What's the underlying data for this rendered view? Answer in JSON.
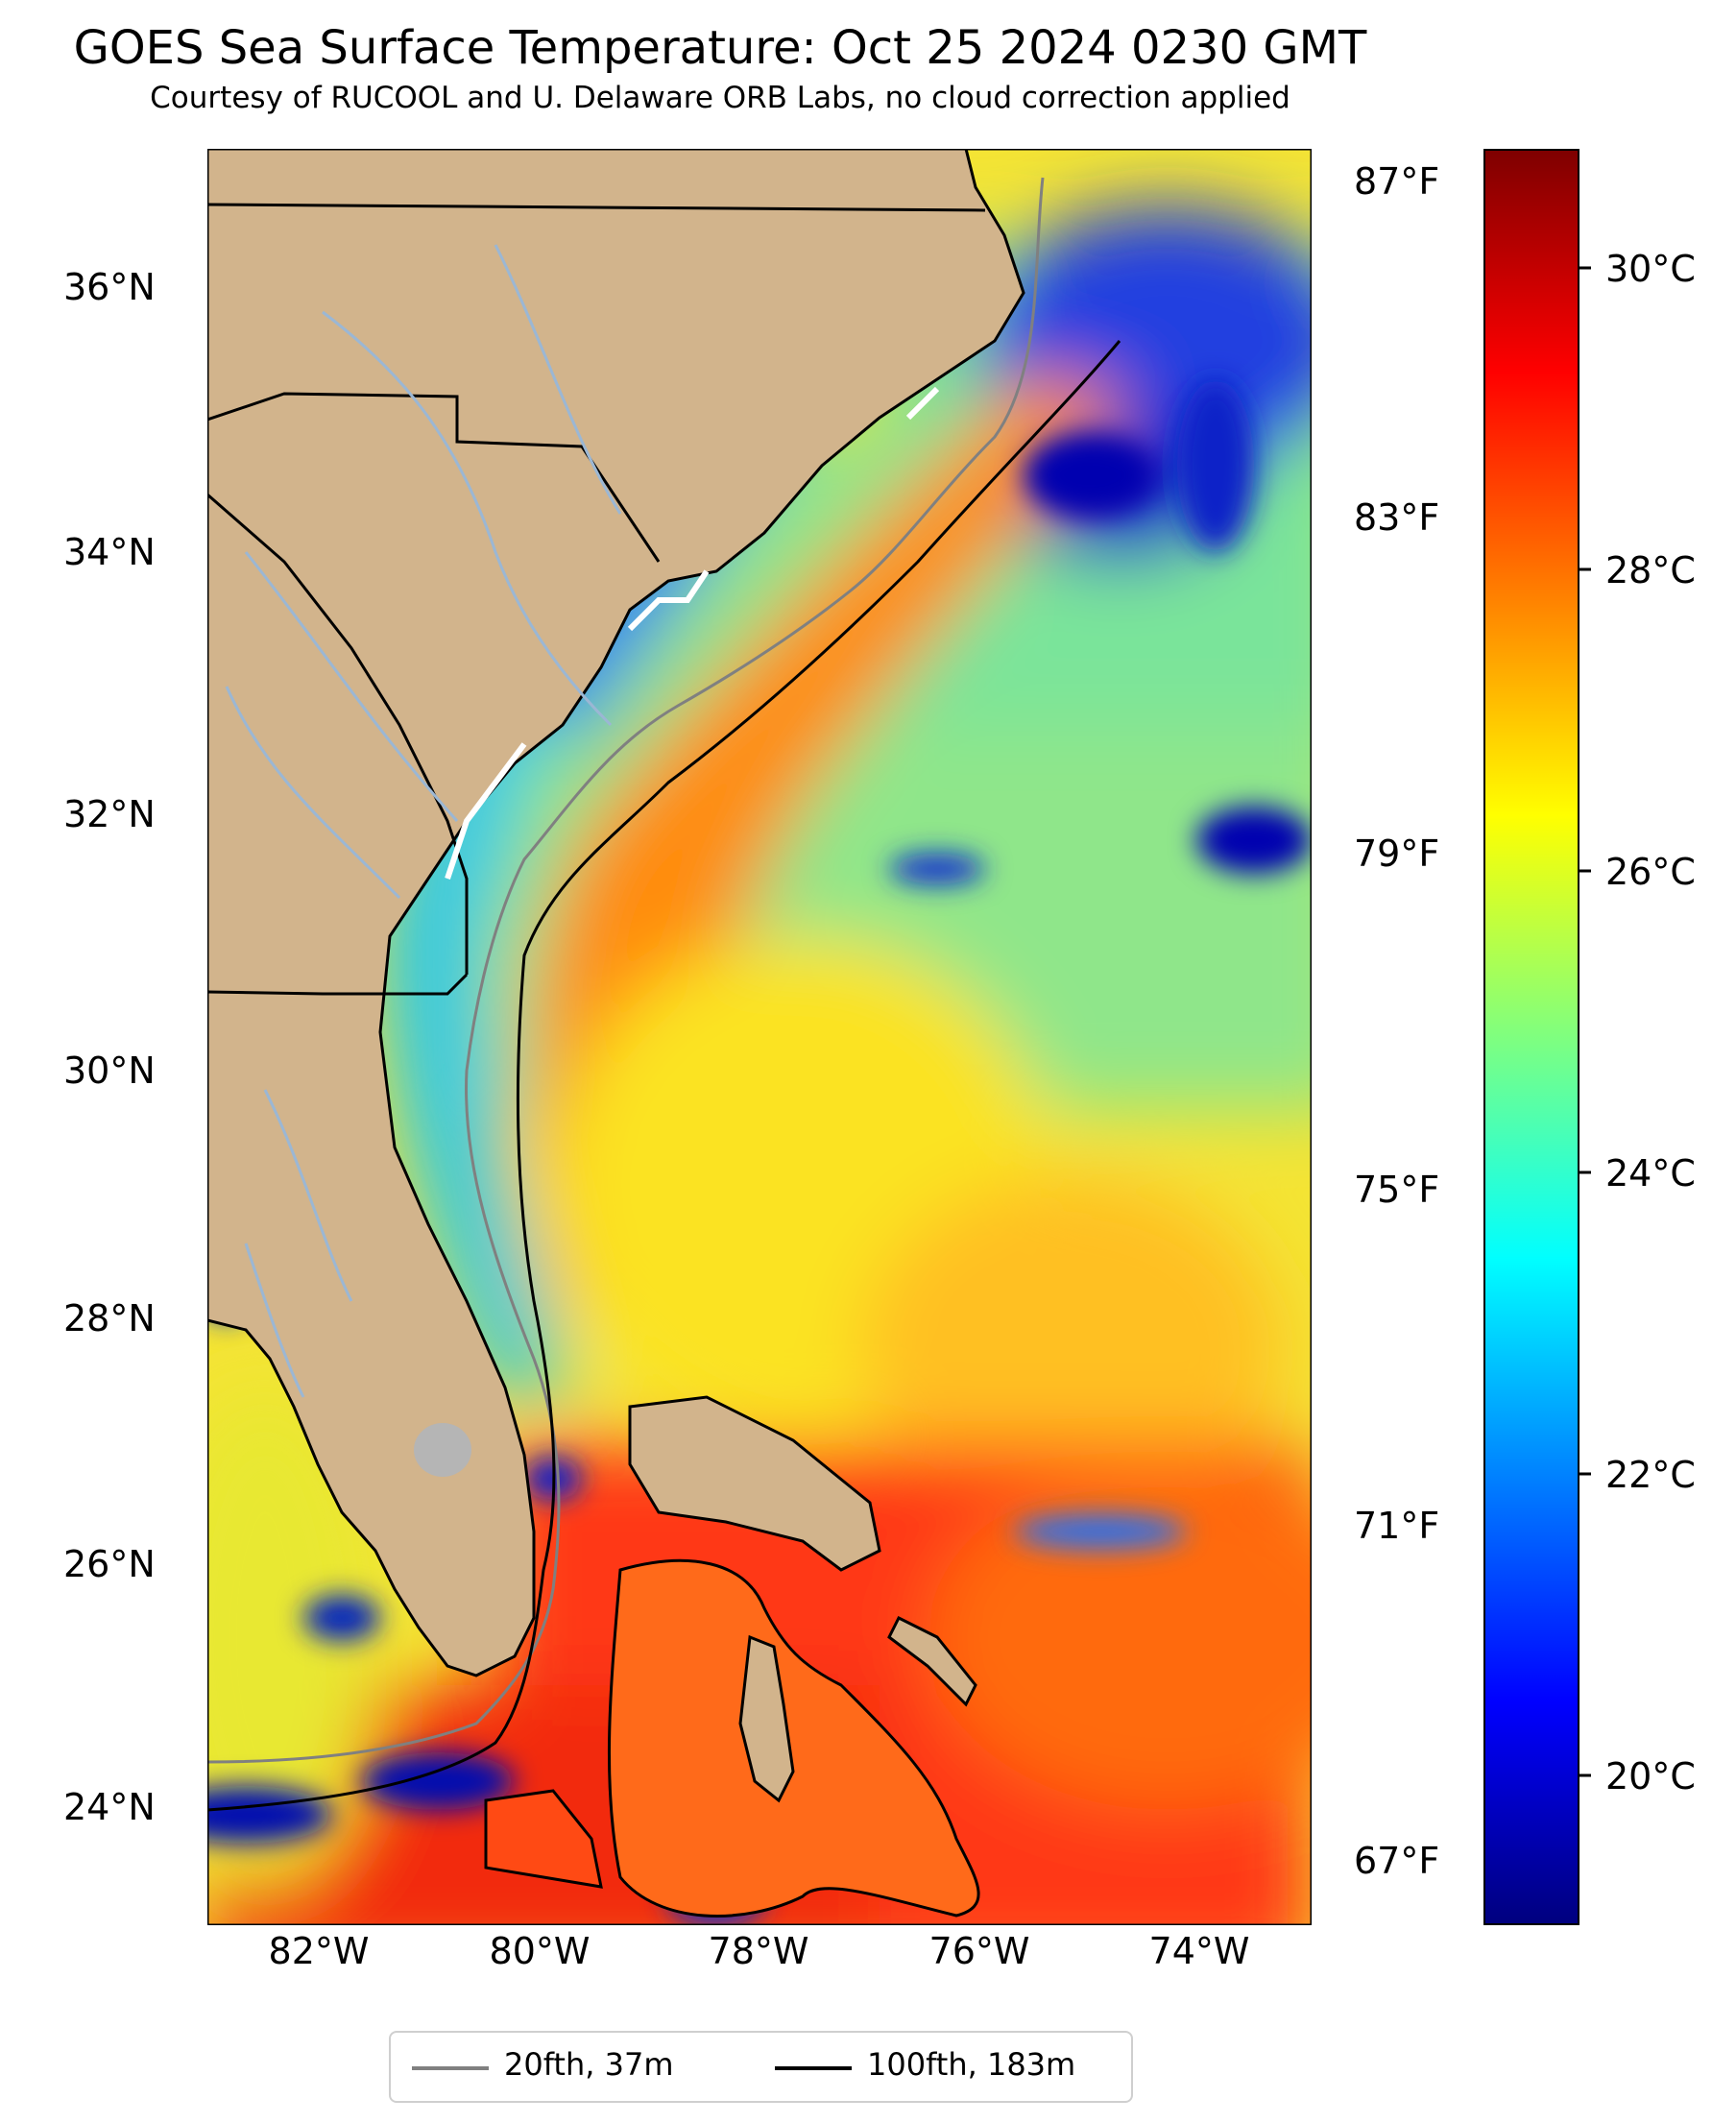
{
  "title": "GOES Sea Surface Temperature: Oct 25 2024 0230 GMT",
  "subtitle": "Courtesy of RUCOOL and U. Delaware ORB Labs, no cloud correction applied",
  "map": {
    "lat_labels": [
      "36°N",
      "34°N",
      "32°N",
      "30°N",
      "28°N",
      "26°N",
      "24°N"
    ],
    "lon_labels": [
      "82°W",
      "80°W",
      "78°W",
      "76°W",
      "74°W"
    ],
    "fahrenheit_labels": [
      "87°F",
      "83°F",
      "79°F",
      "75°F",
      "71°F",
      "67°F"
    ]
  },
  "colorbar": {
    "labels": [
      "30°C",
      "28°C",
      "26°C",
      "24°C",
      "22°C",
      "20°C"
    ],
    "colors": [
      "#00007f",
      "#0000ff",
      "#007fff",
      "#00ffff",
      "#7fff7f",
      "#ffff00",
      "#ff7f00",
      "#ff0000",
      "#7f0000"
    ]
  },
  "legend": {
    "items": [
      {
        "label": "20fth, 37m",
        "color": "#808080"
      },
      {
        "label": "100fth, 183m",
        "color": "#000000"
      }
    ]
  },
  "colors": {
    "land": "#d2b48c",
    "lake": "#b5b5b5",
    "river": "#9bb7d4"
  }
}
